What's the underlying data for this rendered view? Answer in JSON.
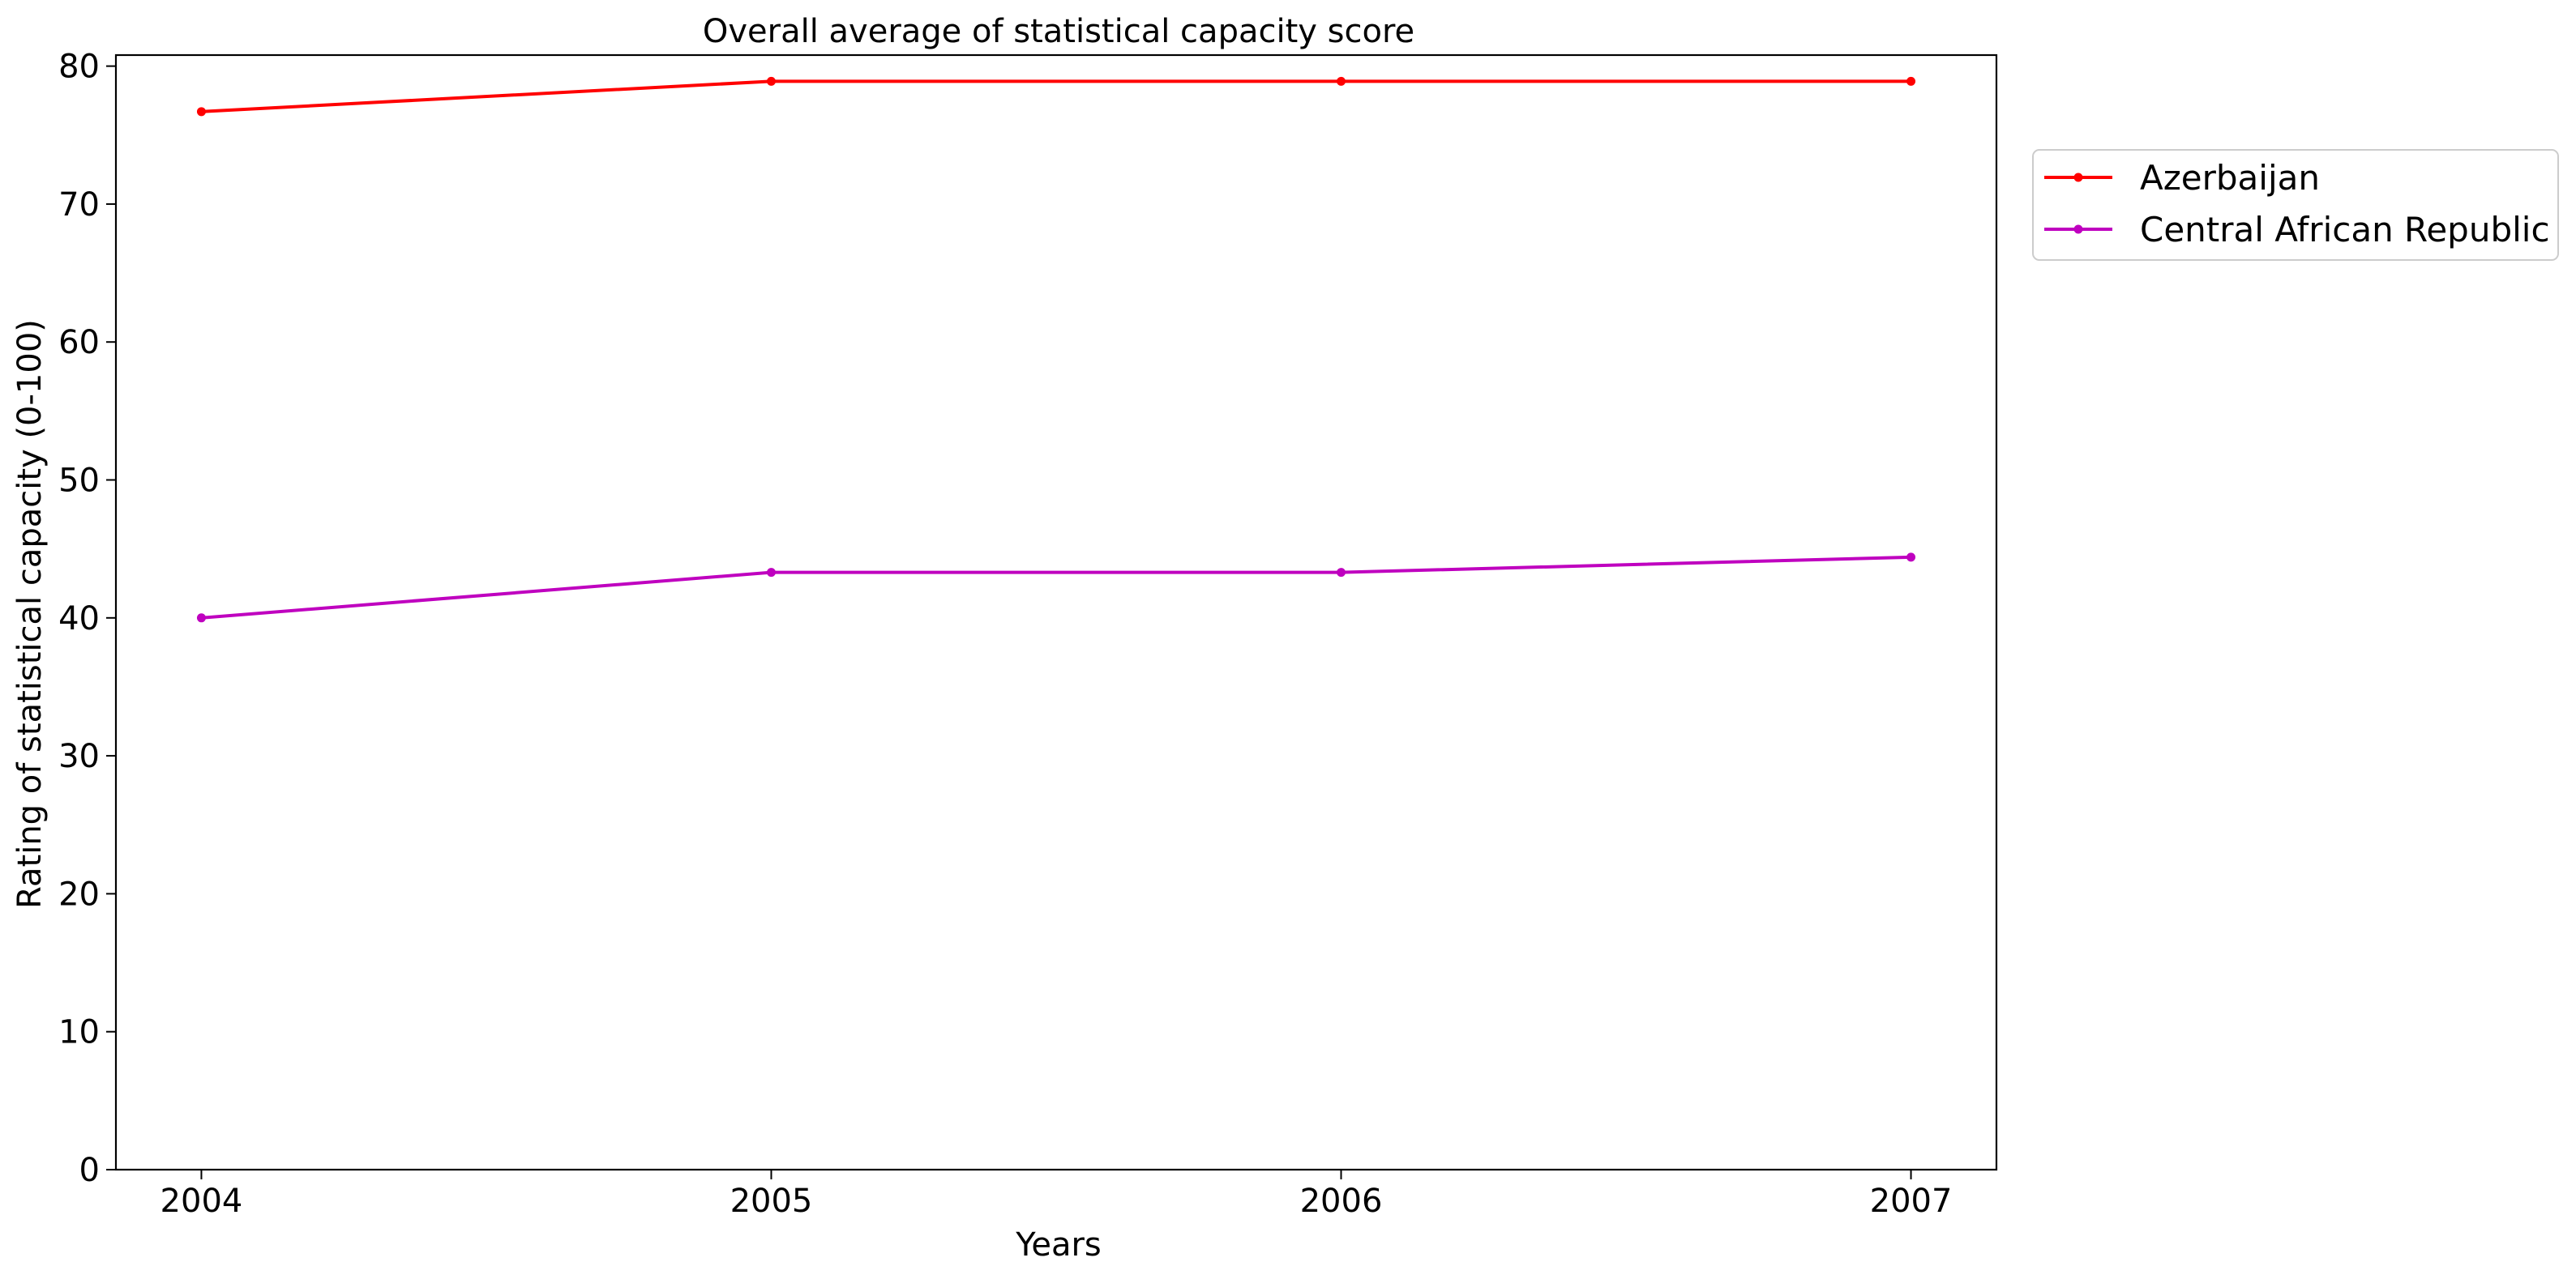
{
  "chart_data": {
    "type": "line",
    "title": "Overall average of statistical capacity score",
    "xlabel": "Years",
    "ylabel": "Rating of statistical capacity (0-100)",
    "x": [
      "2004",
      "2005",
      "2006",
      "2007"
    ],
    "y_ticks": [
      0,
      10,
      20,
      30,
      40,
      50,
      60,
      70,
      80
    ],
    "ylim": [
      0,
      80.8
    ],
    "grid": false,
    "legend_position": "outside-top-right",
    "series": [
      {
        "name": "Azerbaijan",
        "color": "#ff0000",
        "values": [
          76.7,
          78.9,
          78.9,
          78.9
        ]
      },
      {
        "name": "Central African Republic",
        "color": "#bf00bf",
        "values": [
          40.0,
          43.3,
          43.3,
          44.4
        ]
      }
    ]
  }
}
